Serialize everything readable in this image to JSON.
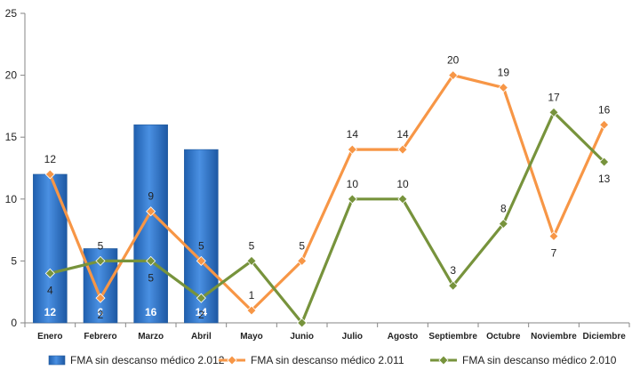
{
  "chart_data": {
    "type": "bar+line",
    "categories": [
      "Enero",
      "Febrero",
      "Marzo",
      "Abril",
      "Mayo",
      "Junio",
      "Julio",
      "Agosto",
      "Septiembre",
      "Octubre",
      "Noviembre",
      "Diciembre"
    ],
    "ylim": [
      0,
      25
    ],
    "yticks": [
      0,
      5,
      10,
      15,
      20,
      25
    ],
    "grid": false,
    "legend": "bottom",
    "series": [
      {
        "name": "FMA sin descanso médico 2.012",
        "kind": "bar",
        "color": "#3a7fd0",
        "values": [
          12,
          6,
          16,
          14,
          null,
          null,
          null,
          null,
          null,
          null,
          null,
          null
        ],
        "labels": [
          "12",
          "6",
          "16",
          "14",
          "",
          "",
          "",
          "",
          "",
          "",
          "",
          ""
        ]
      },
      {
        "name": "FMA sin descanso médico 2.011",
        "kind": "line",
        "color": "#f79646",
        "values": [
          12,
          2,
          9,
          5,
          1,
          5,
          14,
          14,
          20,
          19,
          7,
          16
        ],
        "labels": [
          "12",
          "2",
          "9",
          "5",
          "1",
          "5",
          "14",
          "14",
          "20",
          "19",
          "7",
          "16"
        ]
      },
      {
        "name": "FMA sin descanso médico 2.010",
        "kind": "line",
        "color": "#77933c",
        "values": [
          4,
          5,
          5,
          2,
          5,
          0,
          10,
          10,
          3,
          8,
          17,
          13
        ],
        "labels": [
          "4",
          "5",
          "5",
          "2",
          "5",
          "",
          "10",
          "10",
          "3",
          "8",
          "17",
          "13"
        ]
      }
    ]
  }
}
